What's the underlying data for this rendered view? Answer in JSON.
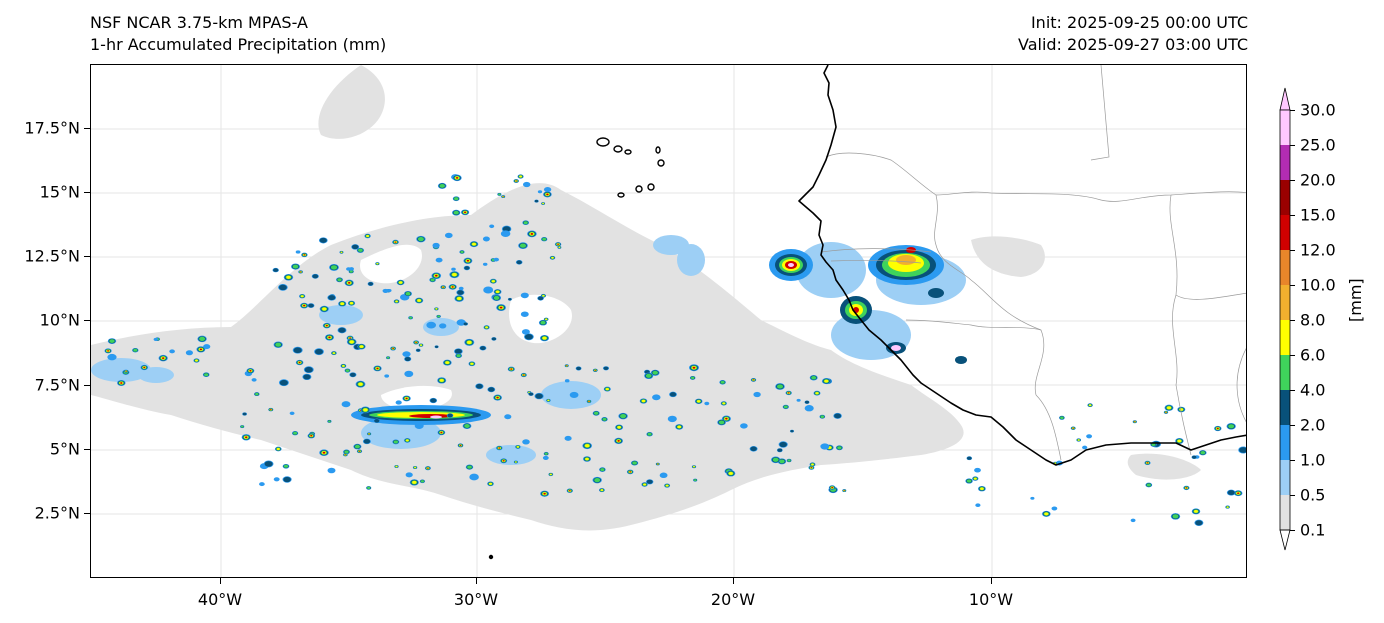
{
  "title": {
    "model": "NSF NCAR 3.75-km MPAS-A",
    "field": "1-hr Accumulated Precipitation (mm)",
    "init": "Init: 2025-09-25 00:00 UTC",
    "valid": "Valid: 2025-09-27 03:00 UTC"
  },
  "axes": {
    "lat_ticks": [
      "17.5°N",
      "15°N",
      "12.5°N",
      "10°N",
      "7.5°N",
      "5°N",
      "2.5°N"
    ],
    "lon_ticks": [
      "40°W",
      "30°W",
      "20°W",
      "10°W"
    ]
  },
  "colorbar": {
    "unit": "[mm]",
    "levels": [
      "30.0",
      "25.0",
      "20.0",
      "15.0",
      "12.0",
      "10.0",
      "8.0",
      "6.0",
      "4.0",
      "2.0",
      "1.0",
      "0.5",
      "0.1"
    ],
    "colors": [
      "#ffc8ff",
      "#b32cb3",
      "#9a0000",
      "#d00000",
      "#e8862a",
      "#f2b02e",
      "#ffff00",
      "#3fd35b",
      "#08517a",
      "#2b9af0",
      "#9dcff5",
      "#e2e2e2"
    ]
  },
  "colors": {
    "coast": "#000000",
    "border": "#9a9a9a",
    "grid": "#e6e6e6"
  }
}
